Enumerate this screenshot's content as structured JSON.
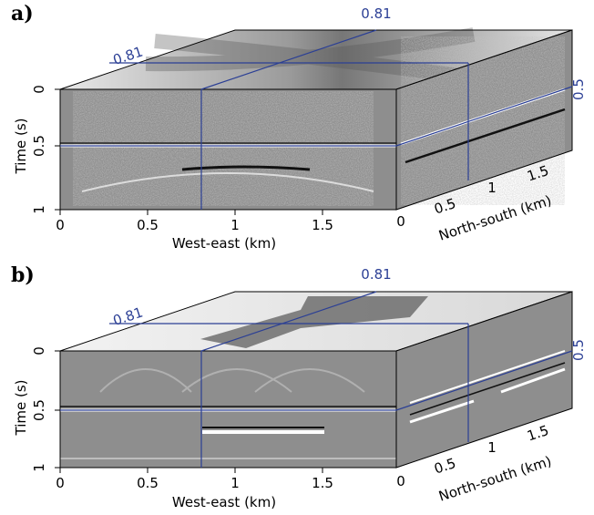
{
  "panels": [
    {
      "tag": "a)",
      "crosshair": {
        "top_label": "0.81",
        "left_label": "0.81",
        "right_label": "0.5"
      },
      "time_axis": {
        "label": "Time (s)",
        "ticks": [
          "0",
          "0.5",
          "1"
        ]
      },
      "we_axis": {
        "label": "West-east (km)",
        "ticks": [
          "0",
          "0.5",
          "1",
          "1.5"
        ]
      },
      "ns_axis": {
        "label": "North-south (km)",
        "ticks": [
          "0",
          "0.5",
          "1",
          "1.5"
        ]
      }
    },
    {
      "tag": "b)",
      "crosshair": {
        "top_label": "0.81",
        "left_label": "0.81",
        "right_label": "0.5"
      },
      "time_axis": {
        "label": "Time (s)",
        "ticks": [
          "0",
          "0.5",
          "1"
        ]
      },
      "we_axis": {
        "label": "West-east (km)",
        "ticks": [
          "0",
          "0.5",
          "1",
          "1.5"
        ]
      },
      "ns_axis": {
        "label": "North-south (km)",
        "ticks": [
          "0",
          "0.5",
          "1",
          "1.5"
        ]
      }
    }
  ],
  "colors": {
    "crosshair": "#2b3f95",
    "panel_bg": "#8e8e8e"
  }
}
